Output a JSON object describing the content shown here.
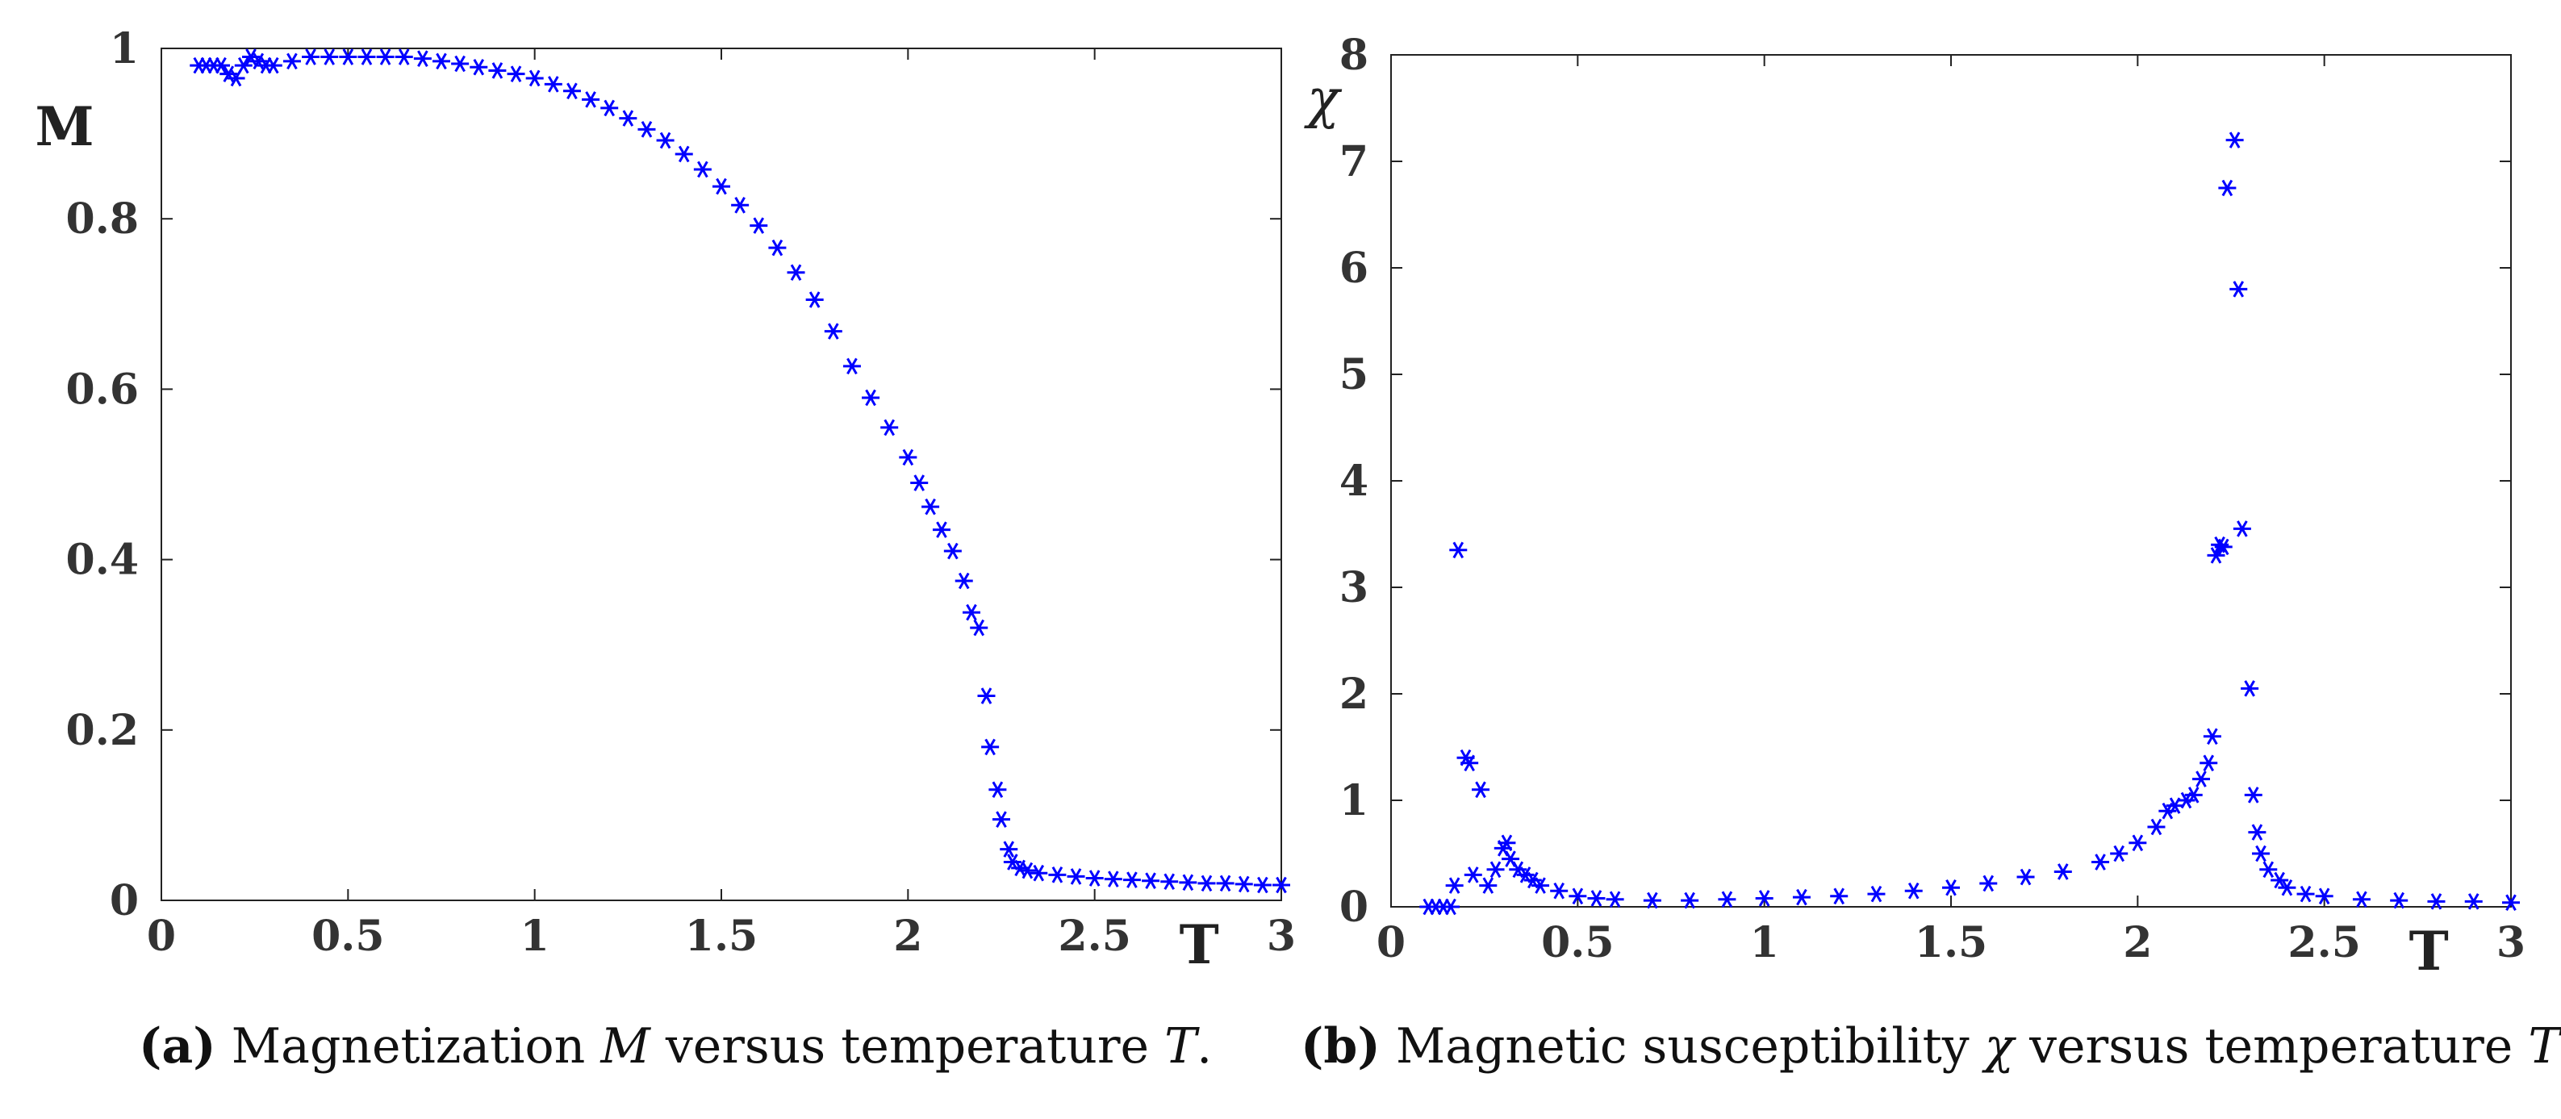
{
  "chart_data": [
    {
      "type": "scatter",
      "panel": "a",
      "title": "",
      "xlabel": "T",
      "ylabel": "M",
      "xlim": [
        0,
        3
      ],
      "ylim": [
        0,
        1
      ],
      "xticks": [
        "0",
        "0.5",
        "1",
        "1.5",
        "2",
        "2.5",
        "3"
      ],
      "yticks": [
        "0",
        "0.2",
        "0.4",
        "0.6",
        "0.8",
        "1"
      ],
      "marker": "*",
      "color": "#0000ff",
      "series": [
        {
          "name": "M",
          "x": [
            0.1,
            0.12,
            0.14,
            0.16,
            0.18,
            0.2,
            0.22,
            0.24,
            0.26,
            0.28,
            0.3,
            0.35,
            0.4,
            0.45,
            0.5,
            0.55,
            0.6,
            0.65,
            0.7,
            0.75,
            0.8,
            0.85,
            0.9,
            0.95,
            1.0,
            1.05,
            1.1,
            1.15,
            1.2,
            1.25,
            1.3,
            1.35,
            1.4,
            1.45,
            1.5,
            1.55,
            1.6,
            1.65,
            1.7,
            1.75,
            1.8,
            1.85,
            1.9,
            1.95,
            2.0,
            2.03,
            2.06,
            2.09,
            2.12,
            2.15,
            2.17,
            2.19,
            2.21,
            2.22,
            2.24,
            2.25,
            2.27,
            2.28,
            2.3,
            2.32,
            2.35,
            2.4,
            2.45,
            2.5,
            2.55,
            2.6,
            2.65,
            2.7,
            2.75,
            2.8,
            2.85,
            2.9,
            2.95,
            3.0
          ],
          "y": [
            0.98,
            0.98,
            0.98,
            0.98,
            0.97,
            0.965,
            0.98,
            0.99,
            0.985,
            0.98,
            0.98,
            0.985,
            0.99,
            0.99,
            0.99,
            0.99,
            0.99,
            0.99,
            0.988,
            0.985,
            0.982,
            0.978,
            0.974,
            0.97,
            0.965,
            0.958,
            0.95,
            0.94,
            0.93,
            0.918,
            0.905,
            0.892,
            0.876,
            0.858,
            0.838,
            0.816,
            0.792,
            0.766,
            0.737,
            0.705,
            0.668,
            0.627,
            0.59,
            0.555,
            0.52,
            0.49,
            0.462,
            0.435,
            0.41,
            0.375,
            0.338,
            0.32,
            0.24,
            0.18,
            0.13,
            0.095,
            0.06,
            0.045,
            0.038,
            0.035,
            0.032,
            0.03,
            0.028,
            0.026,
            0.025,
            0.024,
            0.023,
            0.022,
            0.021,
            0.02,
            0.02,
            0.019,
            0.018,
            0.018
          ]
        }
      ]
    },
    {
      "type": "scatter",
      "panel": "b",
      "title": "",
      "xlabel": "T",
      "ylabel": "χ",
      "xlim": [
        0,
        3
      ],
      "ylim": [
        0,
        8
      ],
      "xticks": [
        "0",
        "0.5",
        "1",
        "1.5",
        "2",
        "2.5",
        "3"
      ],
      "yticks": [
        "0",
        "1",
        "2",
        "3",
        "4",
        "5",
        "6",
        "7",
        "8"
      ],
      "marker": "*",
      "color": "#0000ff",
      "series": [
        {
          "name": "χ",
          "x": [
            0.1,
            0.12,
            0.14,
            0.16,
            0.17,
            0.18,
            0.2,
            0.21,
            0.22,
            0.24,
            0.26,
            0.28,
            0.3,
            0.31,
            0.32,
            0.34,
            0.36,
            0.38,
            0.4,
            0.45,
            0.5,
            0.55,
            0.6,
            0.7,
            0.8,
            0.9,
            1.0,
            1.1,
            1.2,
            1.3,
            1.4,
            1.5,
            1.6,
            1.7,
            1.8,
            1.9,
            1.95,
            2.0,
            2.05,
            2.08,
            2.1,
            2.13,
            2.15,
            2.17,
            2.19,
            2.2,
            2.21,
            2.22,
            2.23,
            2.24,
            2.26,
            2.27,
            2.28,
            2.3,
            2.31,
            2.32,
            2.33,
            2.35,
            2.38,
            2.4,
            2.45,
            2.5,
            2.6,
            2.7,
            2.8,
            2.9,
            3.0
          ],
          "y": [
            0.0,
            0.0,
            0.0,
            0.0,
            0.2,
            3.35,
            1.4,
            1.35,
            0.3,
            1.1,
            0.2,
            0.35,
            0.55,
            0.6,
            0.45,
            0.35,
            0.3,
            0.25,
            0.2,
            0.15,
            0.1,
            0.08,
            0.07,
            0.06,
            0.06,
            0.07,
            0.08,
            0.09,
            0.1,
            0.12,
            0.15,
            0.18,
            0.22,
            0.28,
            0.33,
            0.42,
            0.5,
            0.6,
            0.75,
            0.9,
            0.95,
            1.0,
            1.05,
            1.2,
            1.35,
            1.6,
            3.3,
            3.4,
            3.38,
            6.75,
            7.2,
            5.8,
            3.55,
            2.05,
            1.05,
            0.7,
            0.5,
            0.35,
            0.25,
            0.18,
            0.12,
            0.1,
            0.07,
            0.06,
            0.05,
            0.05,
            0.04
          ]
        }
      ]
    }
  ],
  "captions": {
    "a": {
      "tag": "(a)",
      "pre": "Magnetization",
      "var": "M",
      "mid": "versus temperature",
      "var2": "T",
      "end": "."
    },
    "b": {
      "tag": "(b)",
      "pre": "Magnetic susceptibility",
      "var": "χ",
      "mid": "versus temperature",
      "var2": "T",
      "end": "."
    }
  }
}
